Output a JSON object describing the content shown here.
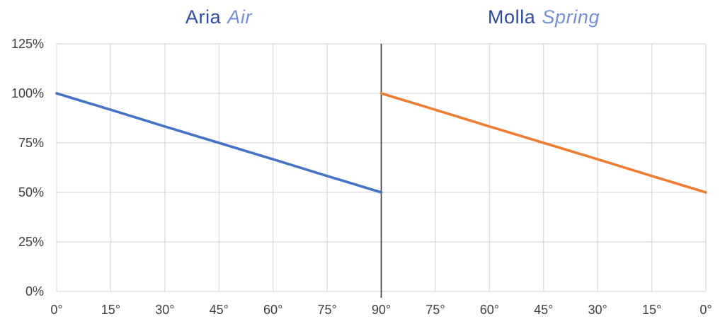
{
  "chart_data": {
    "type": "line",
    "description": "Two side-by-side panels sharing one y-axis; efficiency percentage versus angle",
    "panels": [
      {
        "title": {
          "main": "Aria",
          "accent": "Air"
        },
        "x_axis_reversed": false,
        "series": {
          "name": "Aria Air",
          "color": "#4472C4",
          "x_deg": [
            0,
            15,
            30,
            45,
            60,
            75,
            90
          ],
          "y_pct": [
            100,
            91.7,
            83.3,
            75,
            66.7,
            58.3,
            50
          ]
        }
      },
      {
        "title": {
          "main": "Molla",
          "accent": "Spring"
        },
        "x_axis_reversed": true,
        "series": {
          "name": "Molla Spring",
          "color": "#ED7D31",
          "x_deg": [
            90,
            75,
            60,
            45,
            30,
            15,
            0
          ],
          "y_pct": [
            100,
            91.7,
            83.3,
            75,
            66.7,
            58.3,
            50
          ]
        }
      }
    ],
    "x_tick_labels": [
      "0°",
      "15°",
      "30°",
      "45°",
      "60°",
      "75°",
      "90°",
      "75°",
      "60°",
      "45°",
      "30°",
      "15°",
      "0°"
    ],
    "y_tick_labels": [
      "0%",
      "25%",
      "50%",
      "75%",
      "100%",
      "125%"
    ],
    "y_tick_values": [
      0,
      25,
      50,
      75,
      100,
      125
    ],
    "xlim_deg": [
      0,
      90
    ],
    "ylim_pct": [
      0,
      125
    ],
    "grid": true,
    "legend": "none",
    "colors": {
      "grid": "#d9d9d9",
      "tick_label": "#404040",
      "panel_divider": "#3f3f3f",
      "title_main": "#2b4ea2",
      "title_accent": "#7191d4",
      "background": "#ffffff"
    }
  }
}
